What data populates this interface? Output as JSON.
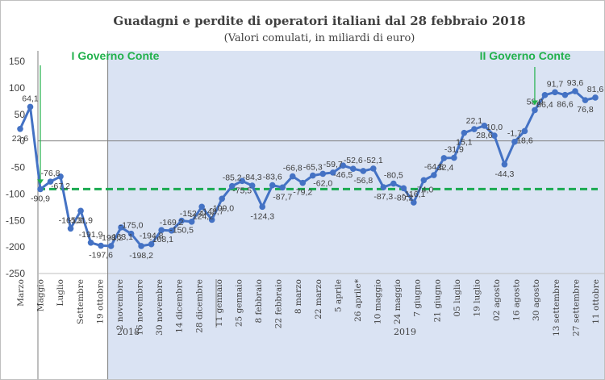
{
  "chart_data": {
    "type": "line",
    "title": "Guadagni e perdite di operatori italiani dal 28 febbraio 2018",
    "subtitle": "(Valori comulati, in miliardi di euro)",
    "ylim": [
      -250,
      150
    ],
    "yticks": [
      150,
      100,
      50,
      0,
      -50,
      -100,
      -150,
      -200,
      -250
    ],
    "grid": false,
    "reference_line": {
      "value": -90.9,
      "style": "dashed",
      "color": "#1aaa50"
    },
    "series": [
      {
        "color": "#4472c4",
        "values": [
          22.6,
          64.1,
          -90.9,
          -76.8,
          -67.2,
          -165.3,
          -131.9,
          -191.9,
          -197.6,
          -198.2,
          -163.1,
          -175.0,
          -198.2,
          -194.8,
          -168.1,
          -169.2,
          -150.5,
          -152.4,
          -124.2,
          -148.7,
          -109.0,
          -85.2,
          -75.5,
          -84.3,
          -124.3,
          -83.6,
          -87.7,
          -66.8,
          -79.2,
          -65.3,
          -62.0,
          -59.7,
          -46.5,
          -52.6,
          -56.8,
          -52.1,
          -87.3,
          -80.5,
          -89.2,
          -116.1,
          -74.0,
          -64.5,
          -32.4,
          -31.9,
          15.1,
          22.1,
          28.6,
          10.0,
          -44.3,
          -1.7,
          18.6,
          58.0,
          86.4,
          91.7,
          86.6,
          93.6,
          76.8,
          81.6
        ]
      }
    ],
    "data_labels": [
      "22,6",
      "64,1",
      "-90,9",
      "-76,8",
      "-67,2",
      "-165,3",
      "-131,9",
      "-191,9",
      "-197,6",
      "-198,2",
      "-163,1",
      "-175,0",
      "-198,2",
      "-194,8",
      "-168,1",
      "-169,2",
      "-150,5",
      "-152,4",
      "-124,2",
      "-148,7",
      "-109,0",
      "-85,2",
      "-75,5",
      "-84,3",
      "-124,3",
      "-83,6",
      "-87,7",
      "-66,8",
      "-79,2",
      "-65,3",
      "-62,0",
      "-59,7",
      "-46,5",
      "-52,6",
      "-56,8",
      "-52,1",
      "-87,3",
      "-80,5",
      "-89,2",
      "-116,1",
      "-74,0",
      "-64,5",
      "-32,4",
      "-31,9",
      "15,1",
      "22,1",
      "28,6",
      "10,0",
      "-44,3",
      "-1,7",
      "18,6",
      "58,0",
      "86,4",
      "91,7",
      "86,6",
      "93,6",
      "76,8",
      "81,6"
    ],
    "labeled_points": [
      1,
      2,
      3,
      4,
      5,
      6,
      7,
      8,
      9,
      10,
      11,
      12,
      13,
      14,
      15,
      16,
      17,
      18,
      19,
      20,
      21,
      22,
      23,
      24,
      25,
      26,
      27,
      28,
      29,
      30,
      31,
      32,
      33,
      34,
      35,
      36,
      37,
      38,
      39,
      40,
      41,
      42,
      43,
      44,
      45,
      46,
      47,
      48,
      49,
      50,
      51,
      52,
      53,
      54,
      55,
      56,
      57,
      58
    ],
    "x_labels": [
      "Marzo",
      "Maggio",
      "Luglio",
      "Settembre",
      "19 ottobre",
      "2 novembre",
      "16 novembre",
      "30 novembre",
      "14 dicembre",
      "28 dicembre",
      "11 gennaio",
      "25 gennaio",
      "8 febbraio",
      "22 febbraio",
      "8 marzo",
      "22 marzo",
      "5 aprile",
      "26 aprile*",
      "10 maggio",
      "24 maggio",
      "7 giugno",
      "21 giugno",
      "05 luglio",
      "19 luglio",
      "02 agosto",
      "16 agosto",
      "30 agosto",
      "13 settembre",
      "27 settembre",
      "11 ottobre"
    ],
    "year_labels": [
      "2018",
      "2019"
    ],
    "annotations": [
      {
        "text": "I Governo Conte",
        "point_index": 2,
        "color": "#22b14c"
      },
      {
        "text": "II Governo Conte",
        "point_index": 51,
        "color": "#22b14c"
      }
    ],
    "shaded_region": {
      "from_point": 9,
      "color": "#dae3f3"
    }
  }
}
